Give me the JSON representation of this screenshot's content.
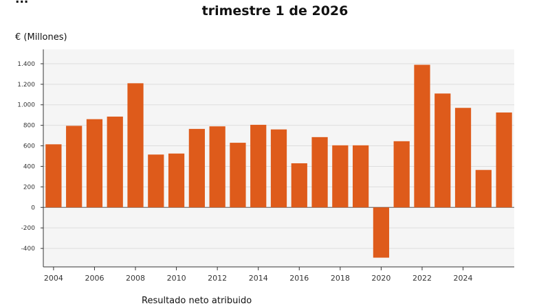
{
  "header": {
    "cut_title": "...",
    "title": "trimestre 1 de 2026"
  },
  "chart_data": {
    "type": "bar",
    "title": "trimestre 1 de 2026",
    "ylabel": "€ (Millones)",
    "xlabel": "",
    "categories": [
      "2004",
      "2005",
      "2006",
      "2007",
      "2008",
      "2009",
      "2010",
      "2011",
      "2012",
      "2013",
      "2014",
      "2015",
      "2016",
      "2017",
      "2018",
      "2019",
      "2020",
      "2021",
      "2022",
      "2023",
      "2024",
      "2025",
      "2026"
    ],
    "x_tick_labels": [
      "2004",
      "2006",
      "2008",
      "2010",
      "2012",
      "2014",
      "2016",
      "2018",
      "2020",
      "2022",
      "2024"
    ],
    "series": [
      {
        "name": "Resultado neto atribuido",
        "color": "#de5b1b",
        "values": [
          615,
          795,
          860,
          885,
          1210,
          515,
          525,
          765,
          790,
          630,
          805,
          760,
          430,
          685,
          605,
          605,
          -490,
          645,
          1390,
          1110,
          970,
          365,
          925
        ]
      }
    ],
    "ylim": [
      -580,
      1540
    ],
    "y_ticks": [
      -400,
      -200,
      0,
      200,
      400,
      600,
      800,
      1000,
      1200,
      1400
    ],
    "y_tick_labels": [
      "-400",
      "-200",
      "0",
      "200",
      "400",
      "600",
      "800",
      "1.000",
      "1.200",
      "1.400"
    ],
    "grid": true,
    "legend_position": "bottom",
    "plot_background": "#f5f5f5"
  }
}
